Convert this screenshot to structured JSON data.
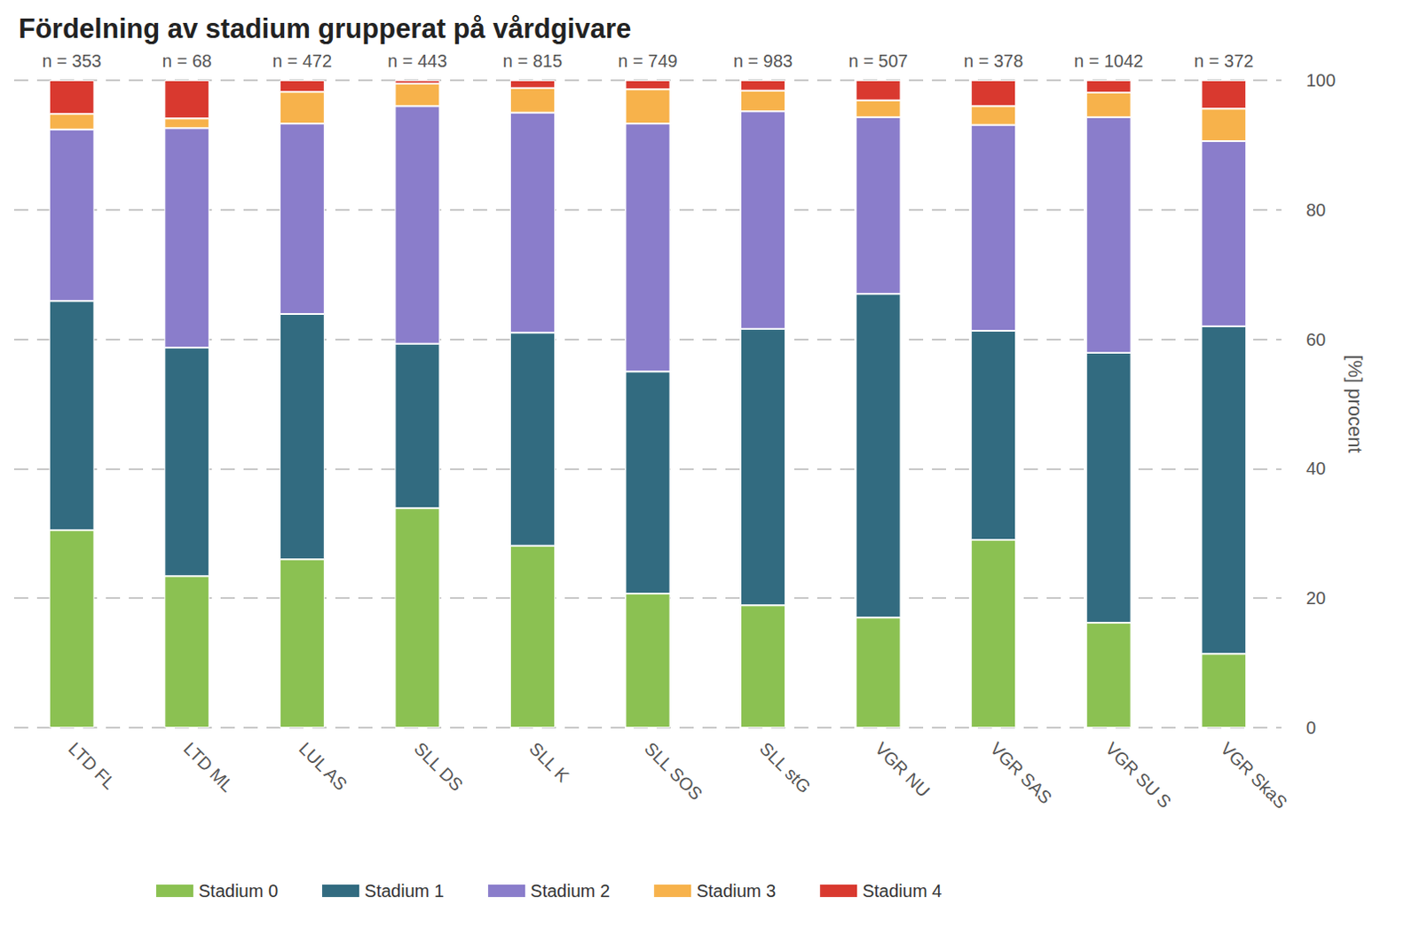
{
  "chart_data": {
    "type": "bar",
    "title": "Fördelning av stadium grupperat på vårdgivare",
    "ylabel": "[%] procent",
    "categories": [
      "LTD FL",
      "LTD ML",
      "LUL AS",
      "SLL DS",
      "SLL K",
      "SLL SOS",
      "SLL stG",
      "VGR NU",
      "VGR SAS",
      "VGR SU S",
      "VGR SkaS"
    ],
    "annotations": [
      "n = 353",
      "n = 68",
      "n = 472",
      "n = 443",
      "n = 815",
      "n = 749",
      "n = 983",
      "n = 507",
      "n = 378",
      "n = 1042",
      "n = 372"
    ],
    "series": [
      {
        "name": "Stadium 0",
        "color": "#8bc152",
        "values": [
          30.5,
          23.4,
          26.0,
          33.9,
          28.1,
          20.7,
          18.9,
          17.0,
          29.0,
          16.2,
          11.4
        ]
      },
      {
        "name": "Stadium 1",
        "color": "#326b80",
        "values": [
          35.4,
          35.3,
          37.9,
          25.4,
          32.9,
          34.3,
          42.7,
          50.0,
          32.3,
          41.7,
          50.6
        ]
      },
      {
        "name": "Stadium 2",
        "color": "#8a7dcb",
        "values": [
          26.5,
          33.9,
          29.4,
          36.7,
          34.0,
          38.3,
          33.6,
          27.3,
          31.8,
          36.4,
          28.6
        ]
      },
      {
        "name": "Stadium 3",
        "color": "#f7b24b",
        "values": [
          2.4,
          1.5,
          4.9,
          3.5,
          3.8,
          5.3,
          3.2,
          2.6,
          2.9,
          3.8,
          5.0
        ]
      },
      {
        "name": "Stadium 4",
        "color": "#d9392f",
        "values": [
          5.2,
          5.9,
          1.8,
          0.5,
          1.2,
          1.4,
          1.6,
          3.1,
          4.0,
          1.9,
          4.4
        ]
      }
    ],
    "ylim": [
      0,
      100
    ],
    "yticks": [
      0,
      20,
      40,
      60,
      80,
      100
    ],
    "grid": true,
    "stacked": true,
    "legend": "bottom"
  }
}
